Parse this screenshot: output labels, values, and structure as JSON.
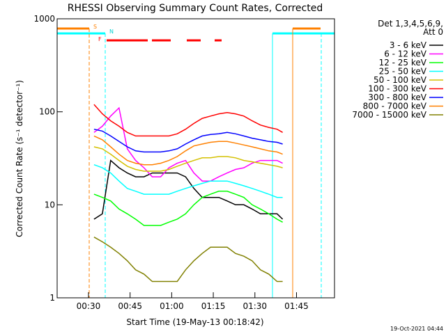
{
  "chart_data": {
    "type": "line",
    "title": "RHESSI Observing Summary Count Rates, Corrected",
    "x_label": "Start Time (19-May-13 00:18:42)",
    "y_label": "Corrected Count Rate (s⁻¹ detector⁻¹)",
    "log_y": true,
    "legend_title": [
      "Det 1,3,4,5,6,9,",
      "Att 0"
    ],
    "timestamp": "19-Oct-2021 04:44",
    "annotations": [
      "S",
      "N",
      "F"
    ],
    "xlim": [
      18.7,
      118.7
    ],
    "xticks": [
      {
        "value": 30,
        "label": "00:30"
      },
      {
        "value": 45,
        "label": "00:45"
      },
      {
        "value": 60,
        "label": "01:00"
      },
      {
        "value": 75,
        "label": "01:15"
      },
      {
        "value": 90,
        "label": "01:30"
      },
      {
        "value": 105,
        "label": "01:45"
      }
    ],
    "ylim": [
      1,
      1000
    ],
    "yticks": [
      1,
      10,
      100,
      1000
    ],
    "x": [
      32,
      35,
      38,
      41,
      44,
      47,
      50,
      53,
      56,
      59,
      62,
      65,
      68,
      71,
      74,
      77,
      80,
      83,
      86,
      89,
      92,
      95,
      98,
      100
    ],
    "series": [
      {
        "name": "3 - 6 keV",
        "color": "#000000",
        "values": [
          7,
          8,
          30,
          25,
          22,
          20,
          20,
          22,
          22,
          22,
          22,
          20,
          15,
          12,
          12,
          12,
          11,
          10,
          10,
          9,
          8,
          8,
          8,
          7
        ]
      },
      {
        "name": "6 - 12 keV",
        "color": "#ff00ff",
        "values": [
          60,
          70,
          90,
          110,
          40,
          30,
          25,
          20,
          20,
          25,
          28,
          30,
          22,
          18,
          18,
          20,
          22,
          24,
          25,
          28,
          30,
          30,
          30,
          28
        ]
      },
      {
        "name": "12 - 25 keV",
        "color": "#00ff00",
        "values": [
          13,
          12,
          11,
          9,
          8,
          7,
          6,
          6,
          6,
          6.5,
          7,
          8,
          10,
          12,
          13,
          14,
          14,
          13,
          12,
          10,
          9,
          8,
          7,
          6.5
        ]
      },
      {
        "name": "25 - 50 keV",
        "color": "#00ffff",
        "values": [
          27,
          25,
          22,
          18,
          15,
          14,
          13,
          13,
          13,
          13,
          14,
          15,
          16,
          17,
          18,
          18,
          18,
          17,
          16,
          15,
          14,
          13,
          12,
          12
        ]
      },
      {
        "name": "50 - 100 keV",
        "color": "#d4c000",
        "values": [
          42,
          40,
          35,
          30,
          26,
          24,
          23,
          23,
          23,
          24,
          26,
          28,
          30,
          32,
          32,
          33,
          33,
          32,
          30,
          29,
          28,
          27,
          26,
          25
        ]
      },
      {
        "name": "100 - 300 keV",
        "color": "#ff0000",
        "values": [
          120,
          95,
          80,
          70,
          60,
          55,
          55,
          55,
          55,
          55,
          58,
          65,
          75,
          85,
          90,
          95,
          98,
          95,
          90,
          80,
          72,
          68,
          65,
          60
        ]
      },
      {
        "name": "300 - 800 keV",
        "color": "#0000ff",
        "values": [
          65,
          62,
          55,
          48,
          42,
          38,
          37,
          37,
          37,
          38,
          40,
          45,
          50,
          55,
          57,
          58,
          60,
          58,
          55,
          52,
          50,
          48,
          47,
          45
        ]
      },
      {
        "name": "800 - 7000 keV",
        "color": "#ff8000",
        "values": [
          55,
          50,
          42,
          35,
          30,
          28,
          27,
          27,
          28,
          30,
          33,
          38,
          43,
          45,
          47,
          48,
          48,
          46,
          44,
          42,
          40,
          38,
          37,
          35
        ]
      },
      {
        "name": "7000 - 15000 keV",
        "color": "#808000",
        "values": [
          4.5,
          4,
          3.5,
          3,
          2.5,
          2,
          1.8,
          1.5,
          1.5,
          1.5,
          1.5,
          2,
          2.5,
          3,
          3.5,
          3.5,
          3.5,
          3,
          2.8,
          2.5,
          2,
          1.8,
          1.5,
          1.5
        ]
      }
    ]
  }
}
